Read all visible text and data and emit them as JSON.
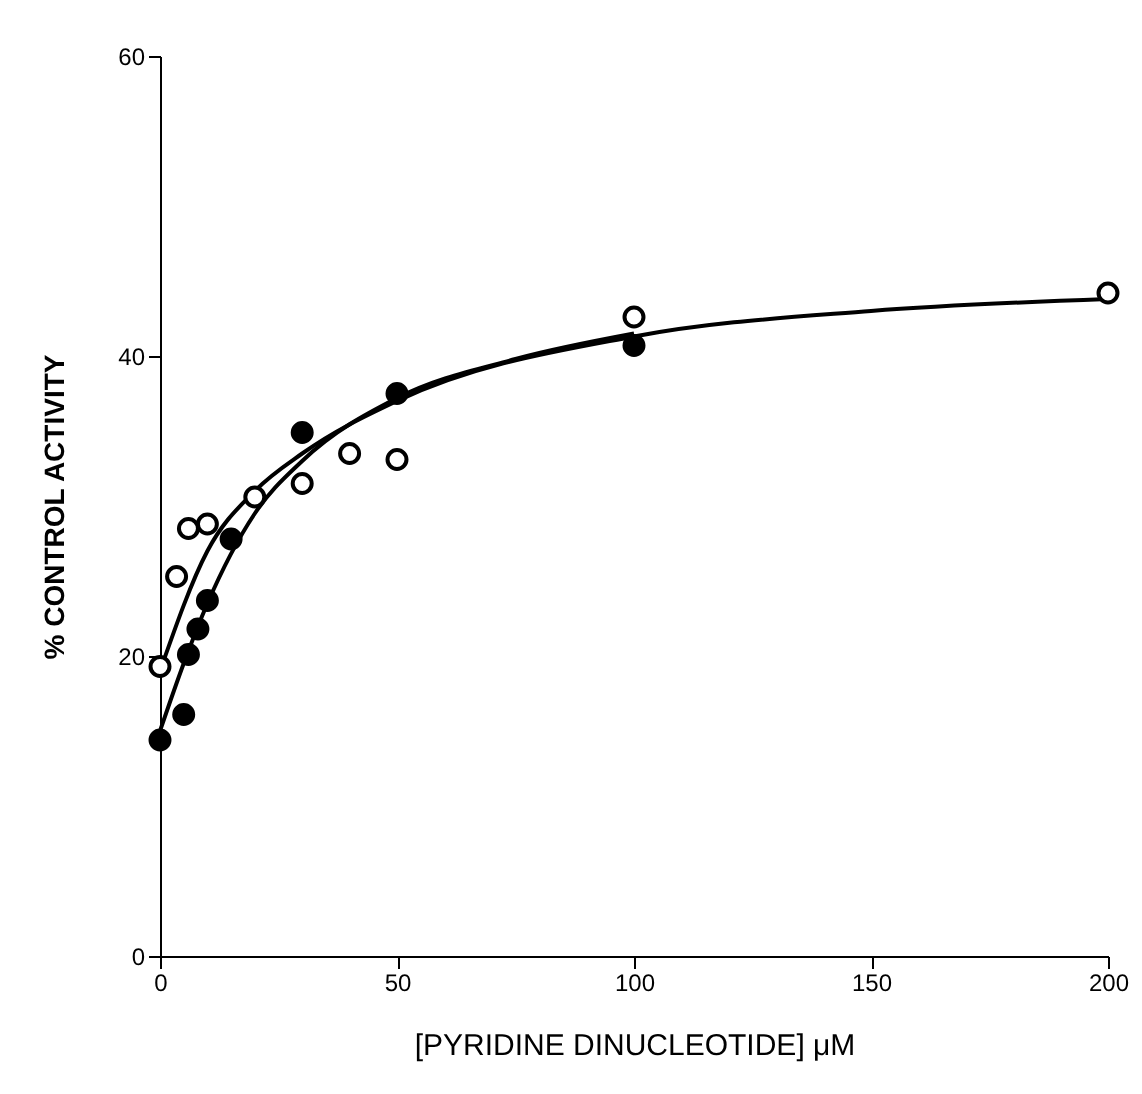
{
  "chart_data": {
    "type": "scatter",
    "xlabel": "[PYRIDINE DINUCLEOTIDE] μM",
    "ylabel": "% CONTROL ACTIVITY",
    "xlim": [
      0,
      200
    ],
    "xticks": [
      0,
      50,
      100,
      150,
      200
    ],
    "ylim": [
      0,
      60
    ],
    "yticks": [
      0,
      20,
      40,
      60
    ],
    "grid": false,
    "series": [
      {
        "type": "line",
        "marker": "none",
        "color": "#000000",
        "x": [
          0,
          5,
          10,
          20,
          30,
          50,
          75,
          100
        ],
        "values": [
          15,
          19.5,
          23.5,
          29.5,
          33,
          37.2,
          39.8,
          41.5
        ]
      },
      {
        "type": "line",
        "marker": "none",
        "color": "#000000",
        "x": [
          0,
          10,
          20,
          30,
          50,
          100,
          150,
          200
        ],
        "values": [
          19,
          27,
          31,
          33.5,
          37,
          41.3,
          43,
          43.8
        ]
      },
      {
        "marker": "circle",
        "color": "#000000",
        "x": [
          0,
          5,
          6,
          8,
          10,
          15,
          30,
          50,
          100
        ],
        "values": [
          14.4,
          16.1,
          20.1,
          21.8,
          23.7,
          27.8,
          34.9,
          37.5,
          40.7
        ]
      },
      {
        "marker": "circle",
        "color": "#ffffff",
        "x": [
          0,
          3.5,
          6,
          10,
          20,
          30,
          40,
          50,
          100,
          200
        ],
        "values": [
          19.3,
          25.3,
          28.5,
          28.8,
          30.6,
          31.5,
          33.5,
          33.1,
          42.6,
          44.2
        ]
      }
    ]
  }
}
